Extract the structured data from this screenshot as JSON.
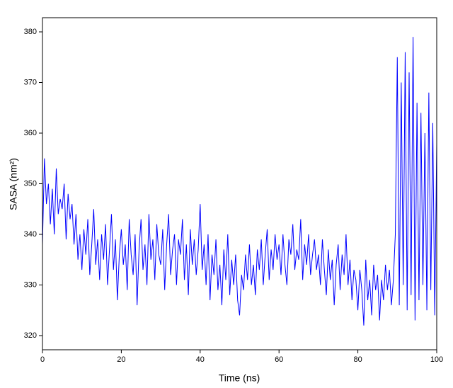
{
  "chart_data": {
    "type": "line",
    "x_label": "Time (ns)",
    "y_label": "SASA (nm²)",
    "color": "#0000ff",
    "grid": false,
    "xlim": [
      0,
      100
    ],
    "xticks": [
      0,
      20,
      40,
      60,
      80,
      100
    ],
    "ylim": [
      317.2,
      382.8
    ],
    "yticks": [
      320,
      330,
      340,
      350,
      360,
      370,
      380
    ],
    "x": [
      0,
      0.5,
      1,
      1.5,
      2,
      2.5,
      3,
      3.5,
      4,
      4.5,
      5,
      5.5,
      6,
      6.5,
      7,
      7.5,
      8,
      8.5,
      9,
      9.5,
      10,
      10.5,
      11,
      11.5,
      12,
      12.5,
      13,
      13.5,
      14,
      14.5,
      15,
      15.5,
      16,
      16.5,
      17,
      17.5,
      18,
      18.5,
      19,
      19.5,
      20,
      20.5,
      21,
      21.5,
      22,
      22.5,
      23,
      23.5,
      24,
      24.5,
      25,
      25.5,
      26,
      26.5,
      27,
      27.5,
      28,
      28.5,
      29,
      29.5,
      30,
      30.5,
      31,
      31.5,
      32,
      32.5,
      33,
      33.5,
      34,
      34.5,
      35,
      35.5,
      36,
      36.5,
      37,
      37.5,
      38,
      38.5,
      39,
      39.5,
      40,
      40.5,
      41,
      41.5,
      42,
      42.5,
      43,
      43.5,
      44,
      44.5,
      45,
      45.5,
      46,
      46.5,
      47,
      47.5,
      48,
      48.5,
      49,
      49.5,
      50,
      50.5,
      51,
      51.5,
      52,
      52.5,
      53,
      53.5,
      54,
      54.5,
      55,
      55.5,
      56,
      56.5,
      57,
      57.5,
      58,
      58.5,
      59,
      59.5,
      60,
      60.5,
      61,
      61.5,
      62,
      62.5,
      63,
      63.5,
      64,
      64.5,
      65,
      65.5,
      66,
      66.5,
      67,
      67.5,
      68,
      68.5,
      69,
      69.5,
      70,
      70.5,
      71,
      71.5,
      72,
      72.5,
      73,
      73.5,
      74,
      74.5,
      75,
      75.5,
      76,
      76.5,
      77,
      77.5,
      78,
      78.5,
      79,
      79.5,
      80,
      80.5,
      81,
      81.5,
      82,
      82.5,
      83,
      83.5,
      84,
      84.5,
      85,
      85.5,
      86,
      86.5,
      87,
      87.5,
      88,
      88.5,
      89,
      89.5,
      90,
      90.5,
      91,
      91.5,
      92,
      92.5,
      93,
      93.5,
      94,
      94.5,
      95,
      95.5,
      96,
      96.5,
      97,
      97.5,
      98,
      98.5,
      99,
      99.5,
      100
    ],
    "values": [
      338,
      355,
      346,
      350,
      342,
      349,
      340,
      353,
      344,
      347,
      345,
      350,
      339,
      348,
      343,
      346,
      338,
      344,
      335,
      340,
      333,
      341,
      336,
      343,
      332,
      338,
      345,
      334,
      339,
      331,
      340,
      335,
      342,
      330,
      337,
      344,
      333,
      339,
      327,
      336,
      341,
      334,
      338,
      329,
      343,
      336,
      332,
      340,
      326,
      337,
      343,
      333,
      338,
      330,
      344,
      335,
      339,
      331,
      342,
      336,
      334,
      341,
      329,
      338,
      344,
      332,
      337,
      340,
      330,
      339,
      336,
      343,
      331,
      338,
      328,
      341,
      334,
      339,
      332,
      337,
      346,
      333,
      338,
      330,
      340,
      327,
      336,
      332,
      339,
      329,
      334,
      326,
      337,
      331,
      340,
      328,
      335,
      330,
      336,
      327,
      324,
      332,
      329,
      336,
      331,
      338,
      330,
      334,
      328,
      337,
      333,
      339,
      330,
      336,
      341,
      331,
      337,
      333,
      340,
      335,
      338,
      332,
      340,
      334,
      330,
      339,
      336,
      342,
      333,
      337,
      335,
      343,
      331,
      338,
      334,
      340,
      332,
      336,
      339,
      333,
      336,
      330,
      339,
      333,
      328,
      337,
      331,
      335,
      326,
      334,
      338,
      329,
      336,
      332,
      340,
      330,
      335,
      327,
      333,
      331,
      325,
      333,
      329,
      322,
      335,
      327,
      331,
      324,
      334,
      329,
      332,
      323,
      331,
      327,
      334,
      329,
      333,
      326,
      331,
      340,
      375,
      326,
      370,
      330,
      376,
      325,
      372,
      328,
      379,
      323,
      366,
      327,
      364,
      330,
      360,
      325,
      368,
      329,
      362,
      324,
      358
    ]
  }
}
